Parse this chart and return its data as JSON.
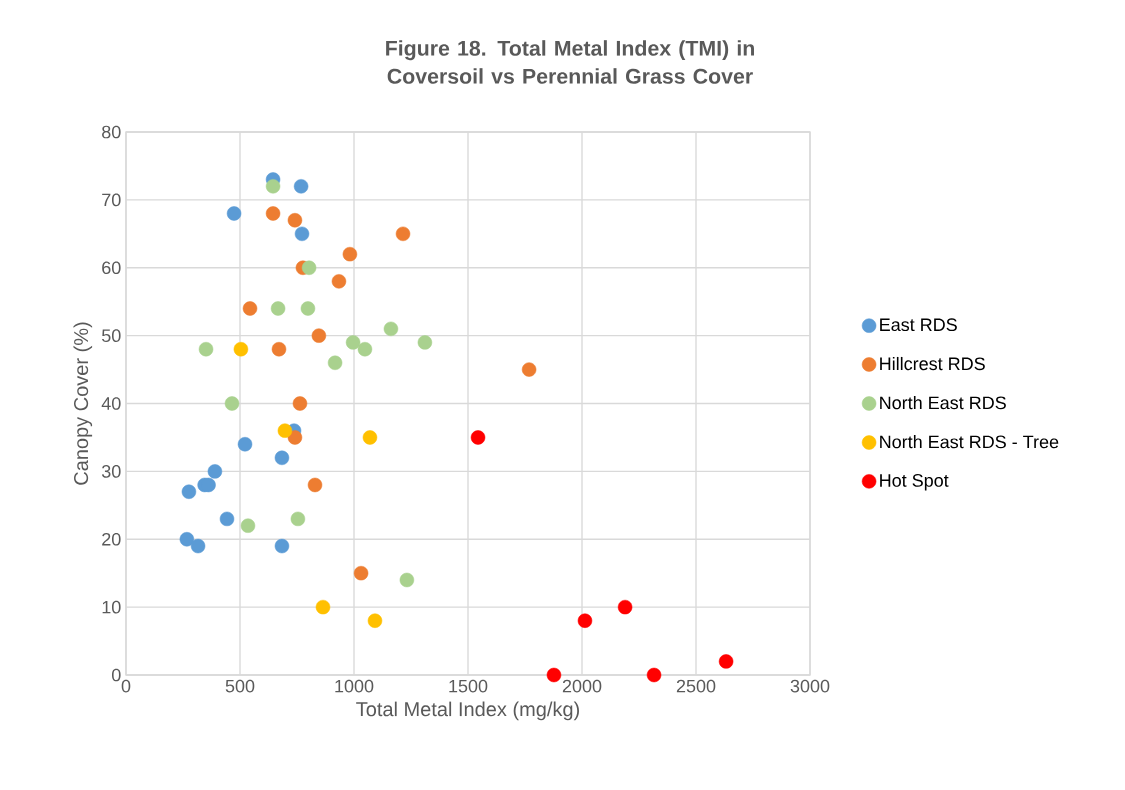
{
  "chart_data": {
    "type": "scatter",
    "title": "Figure 18.  Total Metal Index (TMI) in Coversoil vs Perennial Grass Cover",
    "xlabel": "Total Metal Index (mg/kg)",
    "ylabel": "Canopy Cover (%)",
    "xlim": [
      0,
      3000
    ],
    "ylim": [
      0,
      80
    ],
    "xticks": [
      0,
      500,
      1000,
      1500,
      2000,
      2500,
      3000
    ],
    "yticks": [
      0,
      10,
      20,
      30,
      40,
      50,
      60,
      70,
      80
    ],
    "grid": true,
    "legend": "right",
    "marker": "circle",
    "series": [
      {
        "name": "East RDS",
        "color": "#5b9bd5",
        "x": [
          645,
          768,
          474,
          772,
          737,
          522,
          684,
          390,
          345,
          362,
          276,
          443,
          267,
          316,
          684
        ],
        "values": [
          73,
          72,
          68,
          65,
          36,
          34,
          32,
          30,
          28,
          28,
          27,
          23,
          20,
          19,
          19
        ]
      },
      {
        "name": "Hillcrest RDS",
        "color": "#ed7d31",
        "x": [
          645,
          741,
          1215,
          982,
          776,
          934,
          544,
          846,
          671,
          763,
          741,
          829,
          1031,
          1768
        ],
        "values": [
          68,
          67,
          65,
          62,
          60,
          58,
          54,
          50,
          48,
          40,
          35,
          28,
          15,
          45
        ]
      },
      {
        "name": "North East RDS",
        "color": "#a9d18e",
        "x": [
          645,
          803,
          667,
          798,
          1162,
          351,
          996,
          1048,
          1311,
          917,
          465,
          754,
          535,
          1232
        ],
        "values": [
          72,
          60,
          54,
          54,
          51,
          48,
          49,
          48,
          49,
          46,
          40,
          23,
          22,
          14
        ]
      },
      {
        "name": "North East RDS - Tree",
        "color": "#ffc000",
        "x": [
          504,
          697,
          1070,
          864,
          1092
        ],
        "values": [
          48,
          36,
          35,
          10,
          8
        ]
      },
      {
        "name": "Hot Spot",
        "color": "#ff0000",
        "x": [
          1544,
          2013,
          2189,
          1877,
          2316,
          2632
        ],
        "values": [
          35,
          8,
          10,
          0,
          0,
          2
        ]
      }
    ]
  }
}
